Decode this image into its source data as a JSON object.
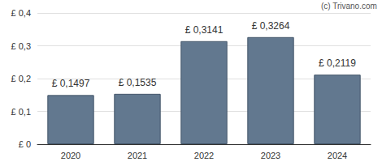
{
  "chart_data": {
    "type": "bar",
    "annotations": [
      "(c) Trivano.com"
    ],
    "categories": [
      "2020",
      "2021",
      "2022",
      "2023",
      "2024"
    ],
    "values": [
      0.1497,
      0.1535,
      0.3141,
      0.3264,
      0.2119
    ],
    "value_labels": [
      "£ 0,1497",
      "£ 0,1535",
      "£ 0,3141",
      "£ 0,3264",
      "£ 0,2119"
    ],
    "data_labels": true,
    "color": "#62788f",
    "ylim": [
      0,
      0.4
    ],
    "yticks": [
      {
        "value": 0,
        "label": "£ 0"
      },
      {
        "value": 0.1,
        "label": "£ 0,1"
      },
      {
        "value": 0.2,
        "label": "£ 0,2"
      },
      {
        "value": 0.3,
        "label": "£ 0,3"
      },
      {
        "value": 0.4,
        "label": "£ 0,4"
      }
    ],
    "grid": true
  }
}
